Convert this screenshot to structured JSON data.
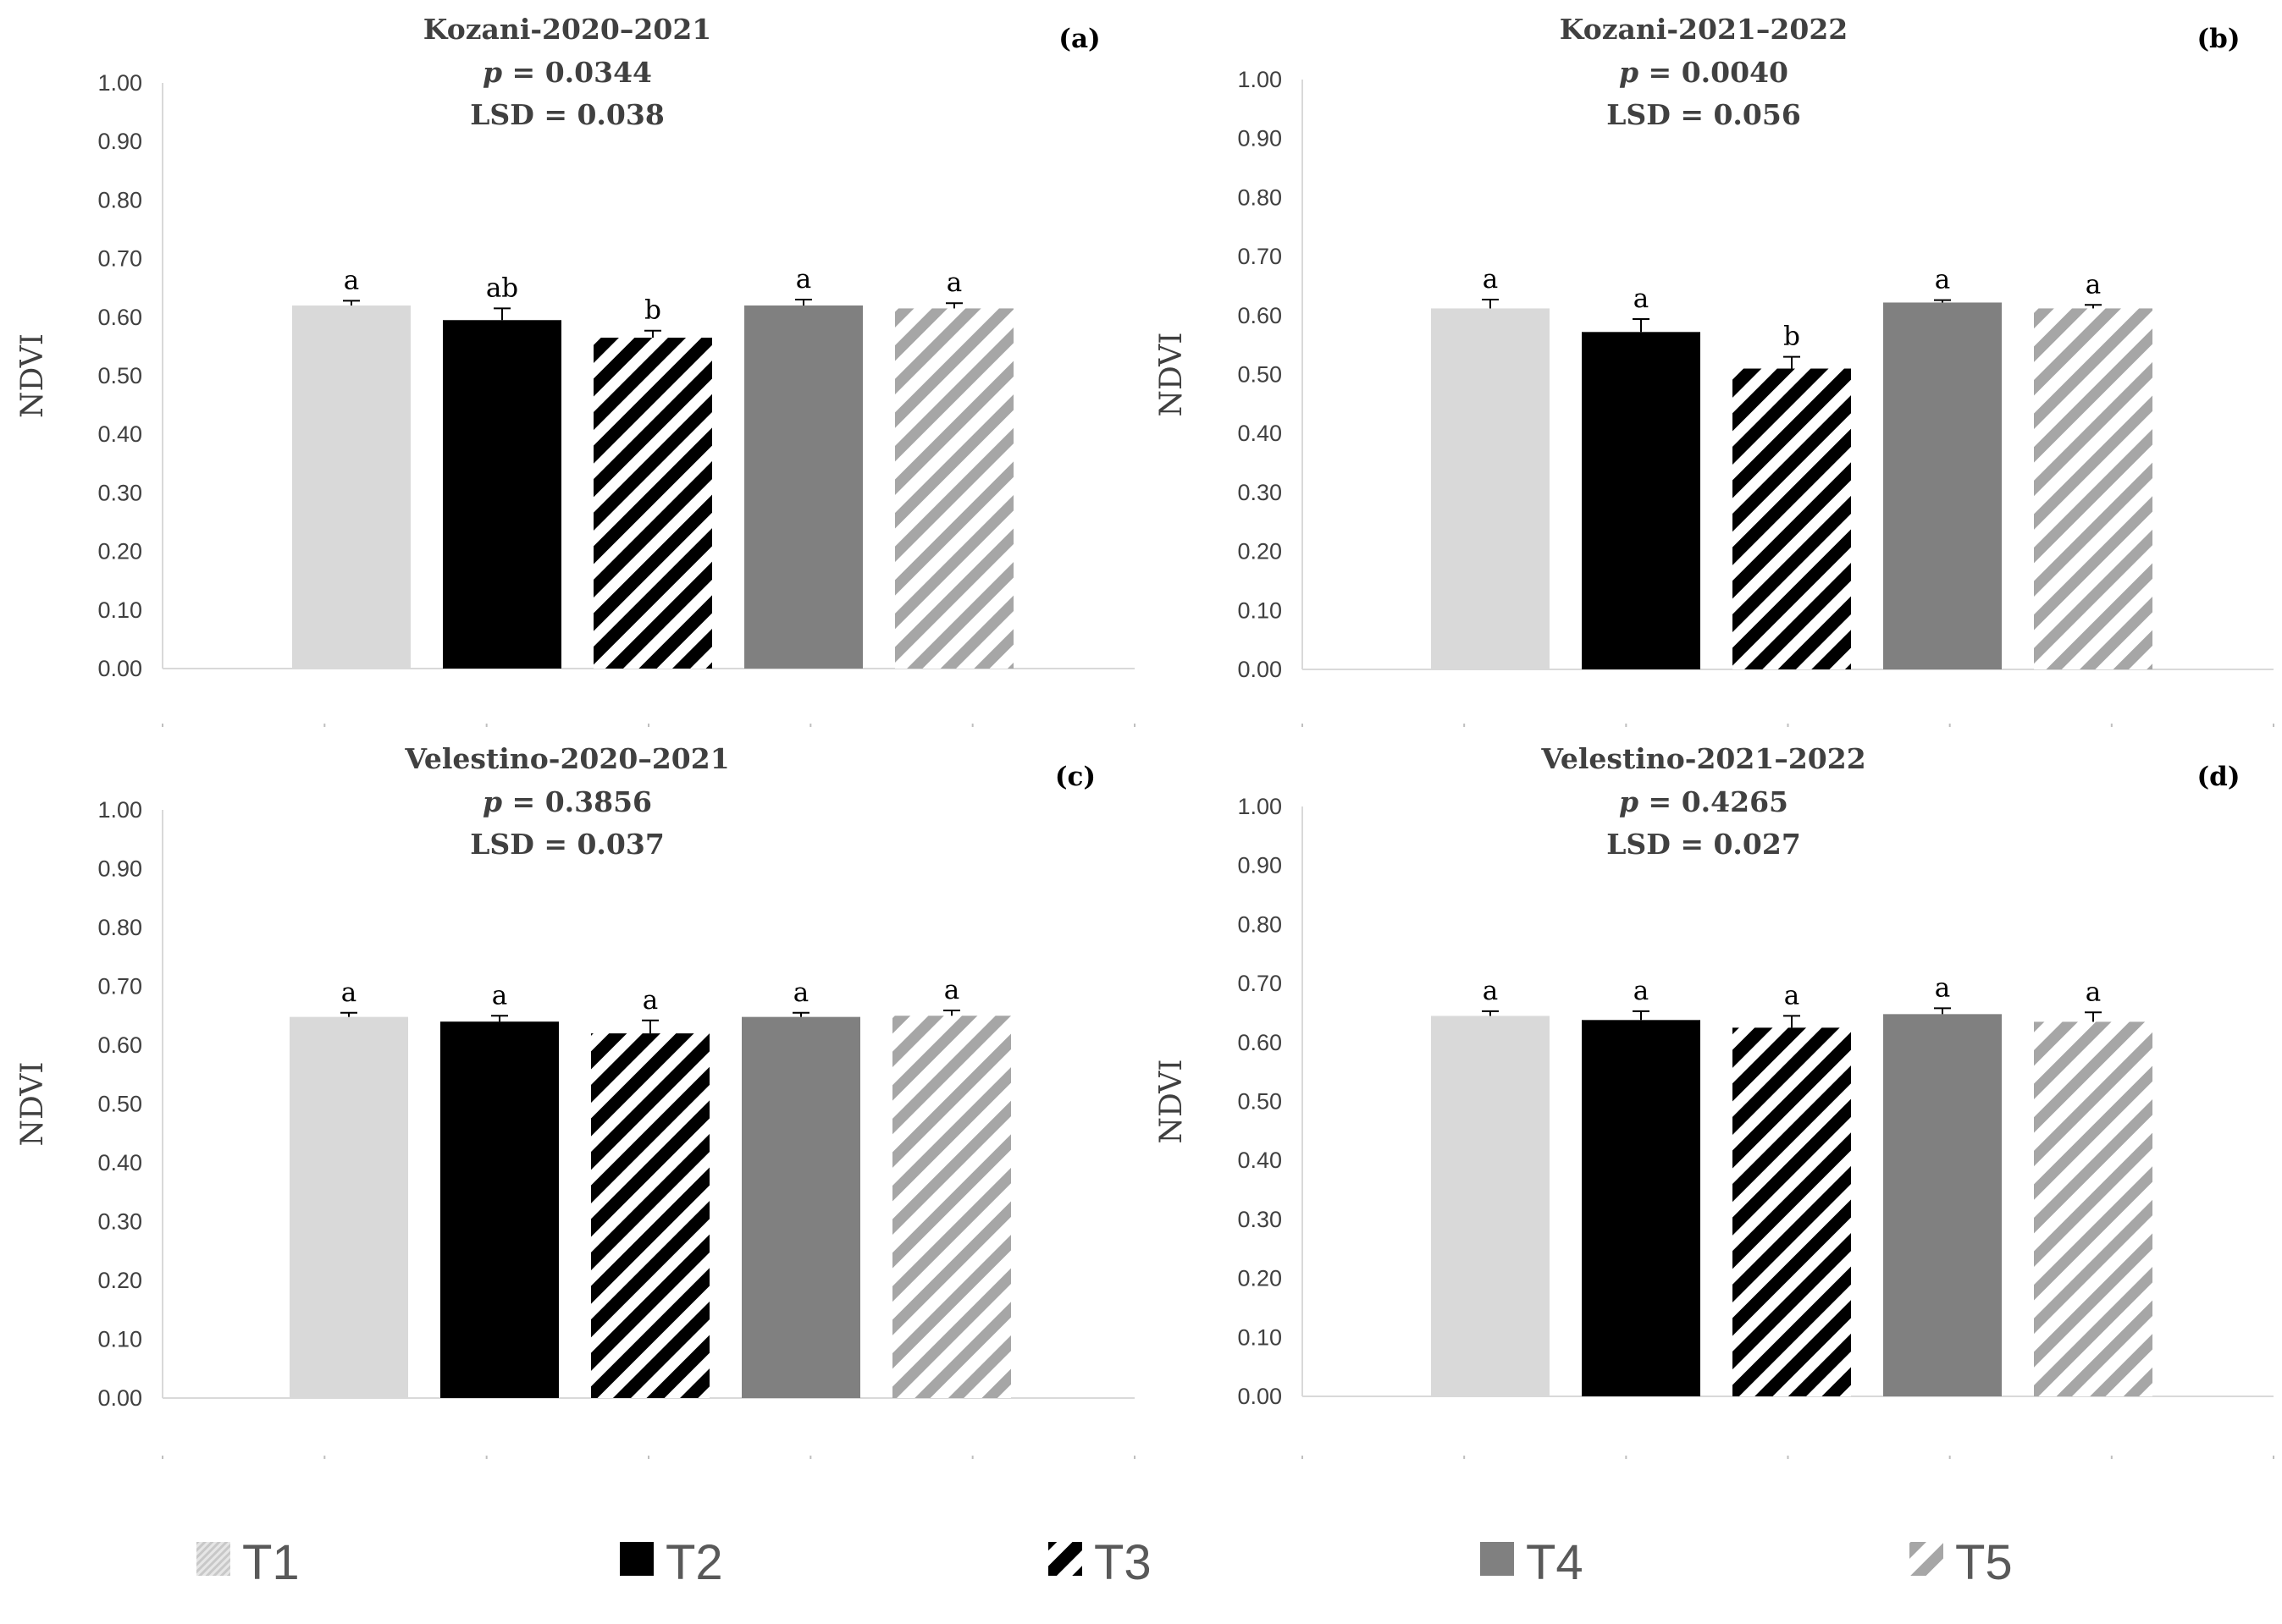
{
  "legend": {
    "items": [
      {
        "key": "T1",
        "label": "T1"
      },
      {
        "key": "T2",
        "label": "T2"
      },
      {
        "key": "T3",
        "label": "T3"
      },
      {
        "key": "T4",
        "label": "T4"
      },
      {
        "key": "T5",
        "label": "T5"
      }
    ]
  },
  "styles": {
    "T1": {
      "fill": "#d9d9d9",
      "pattern": "solid"
    },
    "T2": {
      "fill": "#000000",
      "pattern": "solid"
    },
    "T3": {
      "fill": "#000000",
      "pattern": "wide-diagonal"
    },
    "T4": {
      "fill": "#808080",
      "pattern": "solid"
    },
    "T5": {
      "fill": "#a6a6a6",
      "pattern": "wide-diagonal"
    }
  },
  "chart_data": [
    {
      "type": "bar",
      "panel_tag": "(a)",
      "title": "Kozani-2020–2021",
      "p_prefix": "p",
      "p_value": " = 0.0344",
      "lsd": "LSD = 0.038",
      "ylabel": "NDVI",
      "ylim": [
        0,
        1
      ],
      "yticks": [
        "0.00",
        "0.10",
        "0.20",
        "0.30",
        "0.40",
        "0.50",
        "0.60",
        "0.70",
        "0.80",
        "0.90",
        "1.00"
      ],
      "categories": [
        "T1",
        "T2",
        "T3",
        "T4",
        "T5"
      ],
      "values": [
        0.62,
        0.595,
        0.565,
        0.62,
        0.615
      ],
      "errors": [
        0.008,
        0.02,
        0.012,
        0.01,
        0.009
      ],
      "letters": [
        "a",
        "ab",
        "b",
        "a",
        "a"
      ]
    },
    {
      "type": "bar",
      "panel_tag": "(b)",
      "title": "Kozani-2021–2022",
      "p_prefix": "p",
      "p_value": " = 0.0040",
      "lsd": "LSD = 0.056",
      "ylabel": "NDVI",
      "ylim": [
        0,
        1
      ],
      "yticks": [
        "0.00",
        "0.10",
        "0.20",
        "0.30",
        "0.40",
        "0.50",
        "0.60",
        "0.70",
        "0.80",
        "0.90",
        "1.00"
      ],
      "categories": [
        "T1",
        "T2",
        "T3",
        "T4",
        "T5"
      ],
      "values": [
        0.612,
        0.572,
        0.51,
        0.622,
        0.612
      ],
      "errors": [
        0.015,
        0.022,
        0.02,
        0.004,
        0.006
      ],
      "letters": [
        "a",
        "a",
        "b",
        "a",
        "a"
      ]
    },
    {
      "type": "bar",
      "panel_tag": "(c)",
      "title": "Velestino-2020–2021",
      "p_prefix": "p",
      "p_value": " = 0.3856",
      "lsd": "LSD = 0.037",
      "ylabel": "NDVI",
      "ylim": [
        0,
        1
      ],
      "yticks": [
        "0.00",
        "0.10",
        "0.20",
        "0.30",
        "0.40",
        "0.50",
        "0.60",
        "0.70",
        "0.80",
        "0.90",
        "1.00"
      ],
      "categories": [
        "T1",
        "T2",
        "T3",
        "T4",
        "T5"
      ],
      "values": [
        0.648,
        0.64,
        0.62,
        0.648,
        0.65
      ],
      "errors": [
        0.007,
        0.01,
        0.022,
        0.007,
        0.009
      ],
      "letters": [
        "a",
        "a",
        "a",
        "a",
        "a"
      ]
    },
    {
      "type": "bar",
      "panel_tag": "(d)",
      "title": "Velestino-2021–2022",
      "p_prefix": "p",
      "p_value": " = 0.4265",
      "lsd": "LSD = 0.027",
      "ylabel": "NDVI",
      "ylim": [
        0,
        1
      ],
      "yticks": [
        "0.00",
        "0.10",
        "0.20",
        "0.30",
        "0.40",
        "0.50",
        "0.60",
        "0.70",
        "0.80",
        "0.90",
        "1.00"
      ],
      "categories": [
        "T1",
        "T2",
        "T3",
        "T4",
        "T5"
      ],
      "values": [
        0.645,
        0.638,
        0.625,
        0.648,
        0.635
      ],
      "errors": [
        0.008,
        0.015,
        0.02,
        0.01,
        0.016
      ],
      "letters": [
        "a",
        "a",
        "a",
        "a",
        "a"
      ]
    }
  ]
}
